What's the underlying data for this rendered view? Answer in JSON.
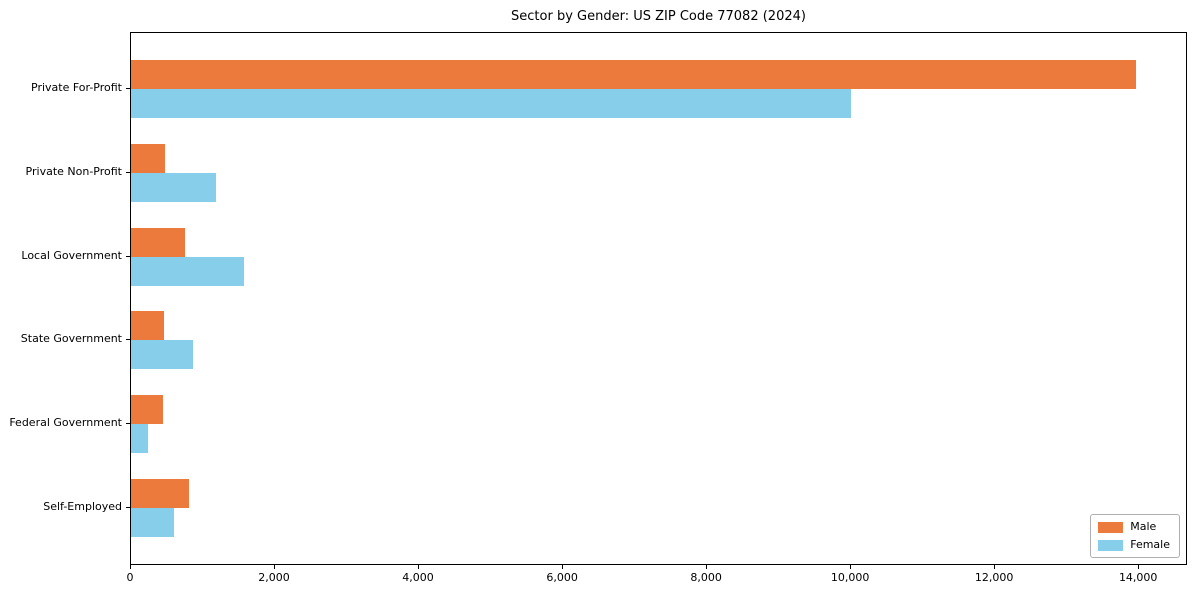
{
  "chart_data": {
    "type": "bar",
    "orientation": "horizontal",
    "title": "Sector by Gender: US ZIP Code 77082 (2024)",
    "categories": [
      "Private For-Profit",
      "Private Non-Profit",
      "Local Government",
      "State Government",
      "Federal Government",
      "Self-Employed"
    ],
    "series": [
      {
        "name": "Male",
        "color": "#ec7a3d",
        "values": [
          13950,
          470,
          750,
          460,
          440,
          800
        ]
      },
      {
        "name": "Female",
        "color": "#87ceeb",
        "values": [
          10000,
          1180,
          1570,
          860,
          240,
          600
        ]
      }
    ],
    "xlabel": "",
    "ylabel": "",
    "xlim": [
      0,
      14650
    ],
    "xticks": [
      0,
      2000,
      4000,
      6000,
      8000,
      10000,
      12000,
      14000
    ],
    "xtick_labels": [
      "0",
      "2,000",
      "4,000",
      "6,000",
      "8,000",
      "10,000",
      "12,000",
      "14,000"
    ],
    "grid": false,
    "legend_position": "lower right",
    "frame_color": "#000000",
    "background_color": "#ffffff"
  }
}
